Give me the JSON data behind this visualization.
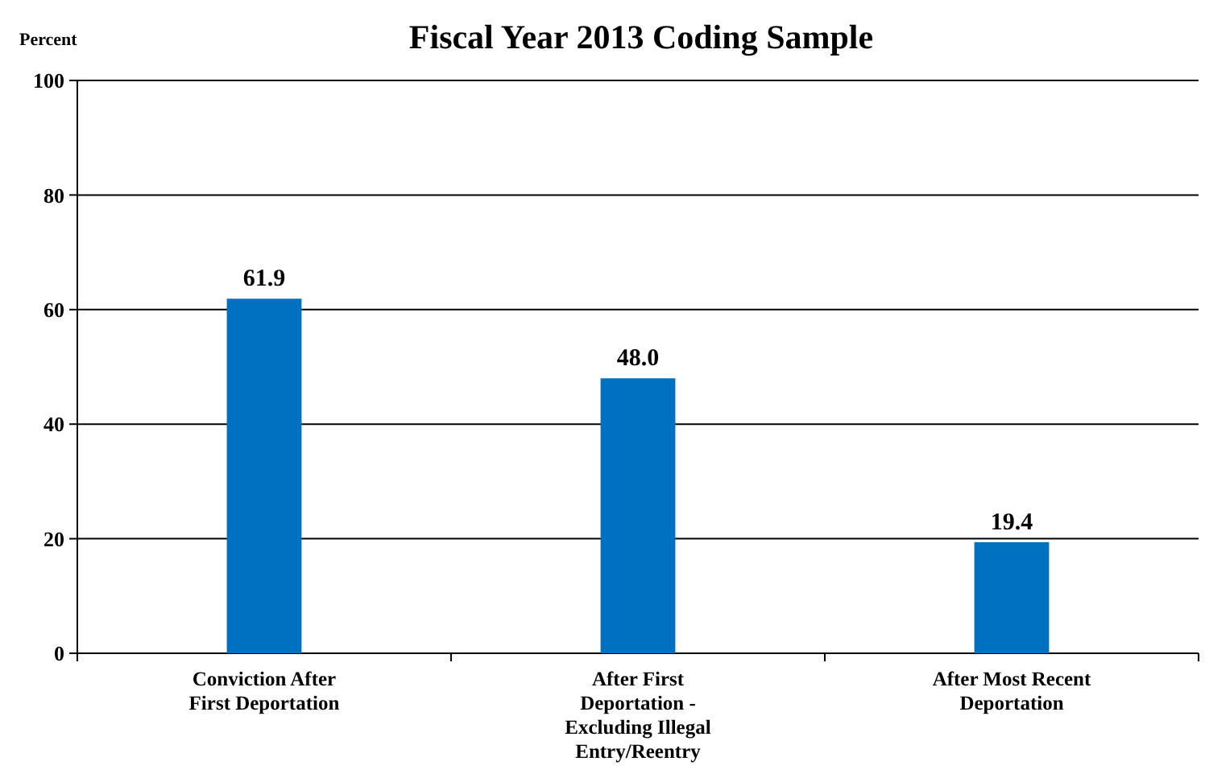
{
  "chart_data": {
    "type": "bar",
    "title": "Fiscal Year 2013 Coding Sample",
    "ylabel": "Percent",
    "categories": [
      "Conviction After First Deportation",
      "After First Deportation - Excluding Illegal Entry/Reentry",
      "After Most Recent Deportation"
    ],
    "values": [
      61.9,
      48.0,
      19.4
    ],
    "value_labels": [
      "61.9",
      "48.0",
      "19.4"
    ],
    "color": "#0070c0",
    "ylim": [
      0,
      100
    ],
    "yticks": [
      0,
      20,
      40,
      60,
      80,
      100
    ],
    "grid": "y"
  }
}
